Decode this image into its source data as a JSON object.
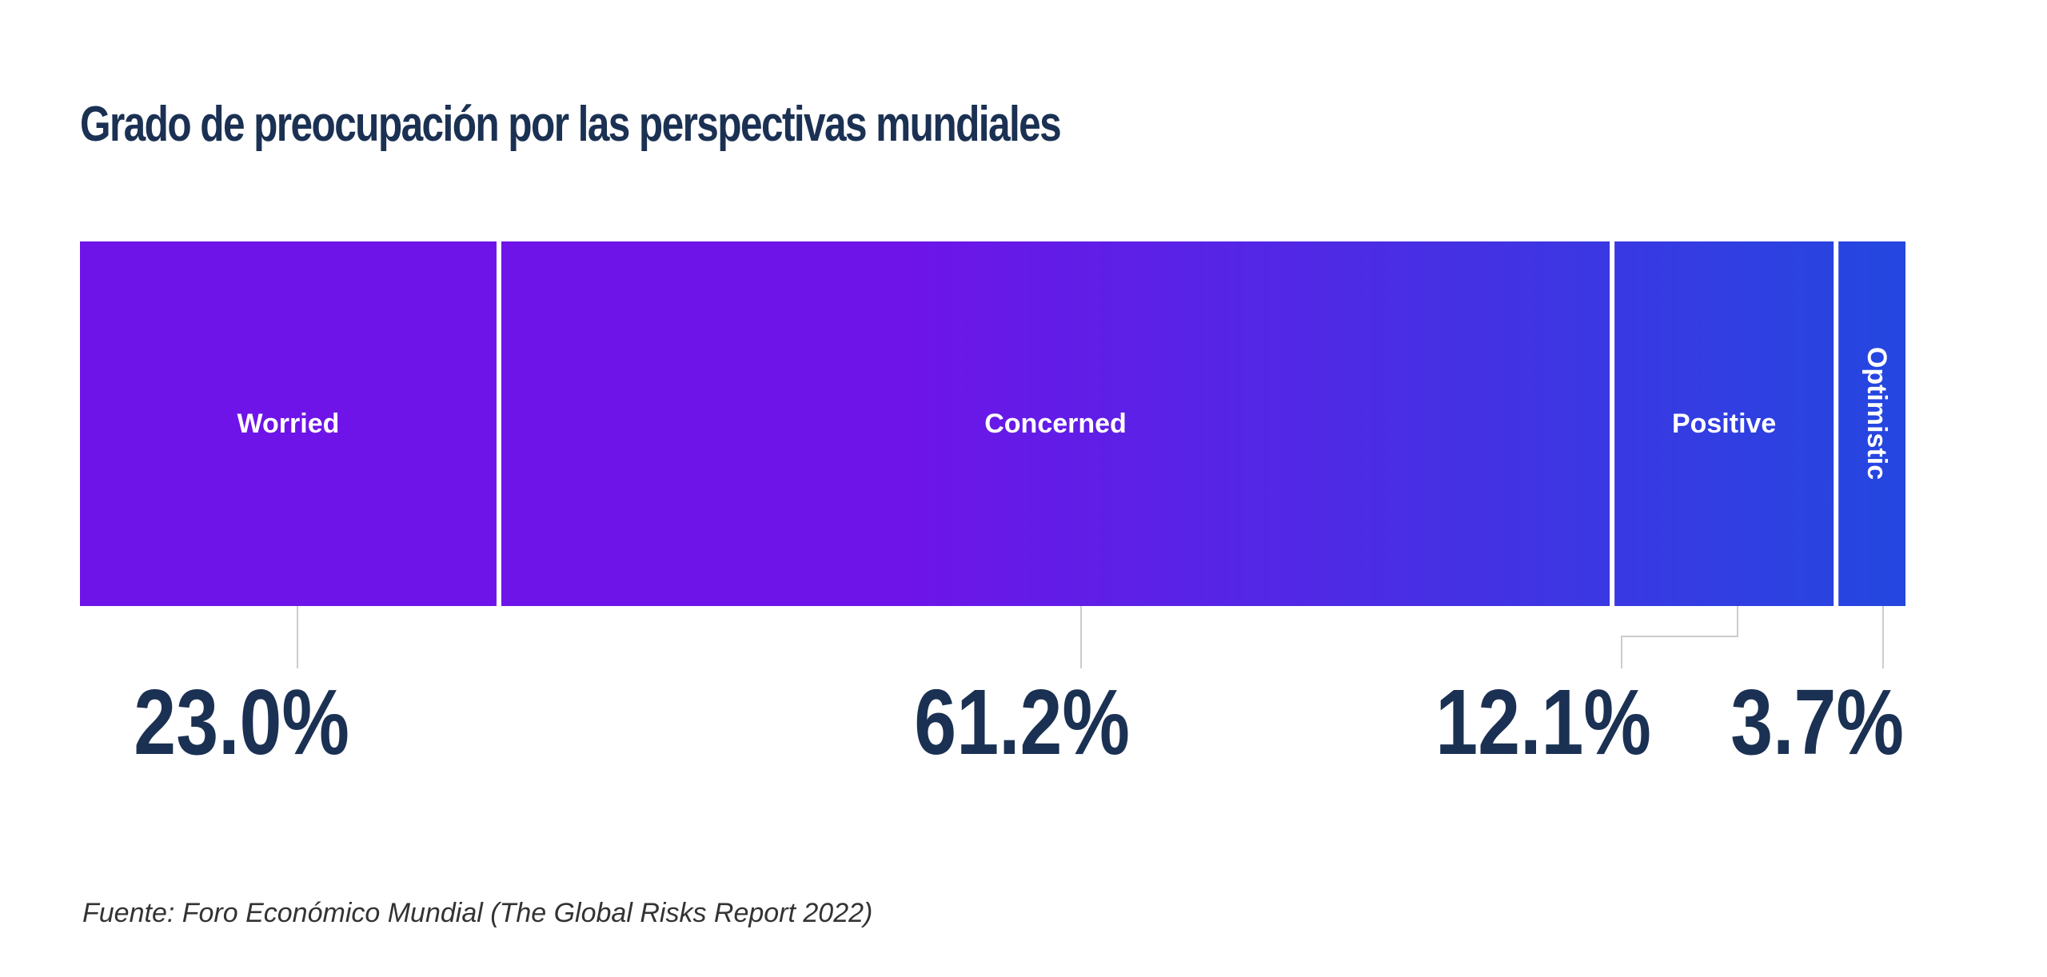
{
  "chart_data": {
    "type": "bar",
    "title": "Grado de preocupación por las perspectivas mundiales",
    "categories": [
      "Worried",
      "Concerned",
      "Positive",
      "Optimistic"
    ],
    "values": [
      23.0,
      61.2,
      12.1,
      3.7
    ],
    "value_labels": [
      "23.0%",
      "61.2%",
      "12.1%",
      "3.7%"
    ],
    "orientation": "stacked-100-percent-horizontal",
    "colors": {
      "gradient_start": "#6e14e8",
      "gradient_end": "#2447e0",
      "title": "#1b3153",
      "value_text": "#1b3153",
      "segment_text": "#ffffff",
      "leader_line": "#cccccc"
    },
    "grid": false,
    "legend": "none"
  },
  "source": "Fuente: Foro Económico Mundial (The Global Risks Report 2022)"
}
